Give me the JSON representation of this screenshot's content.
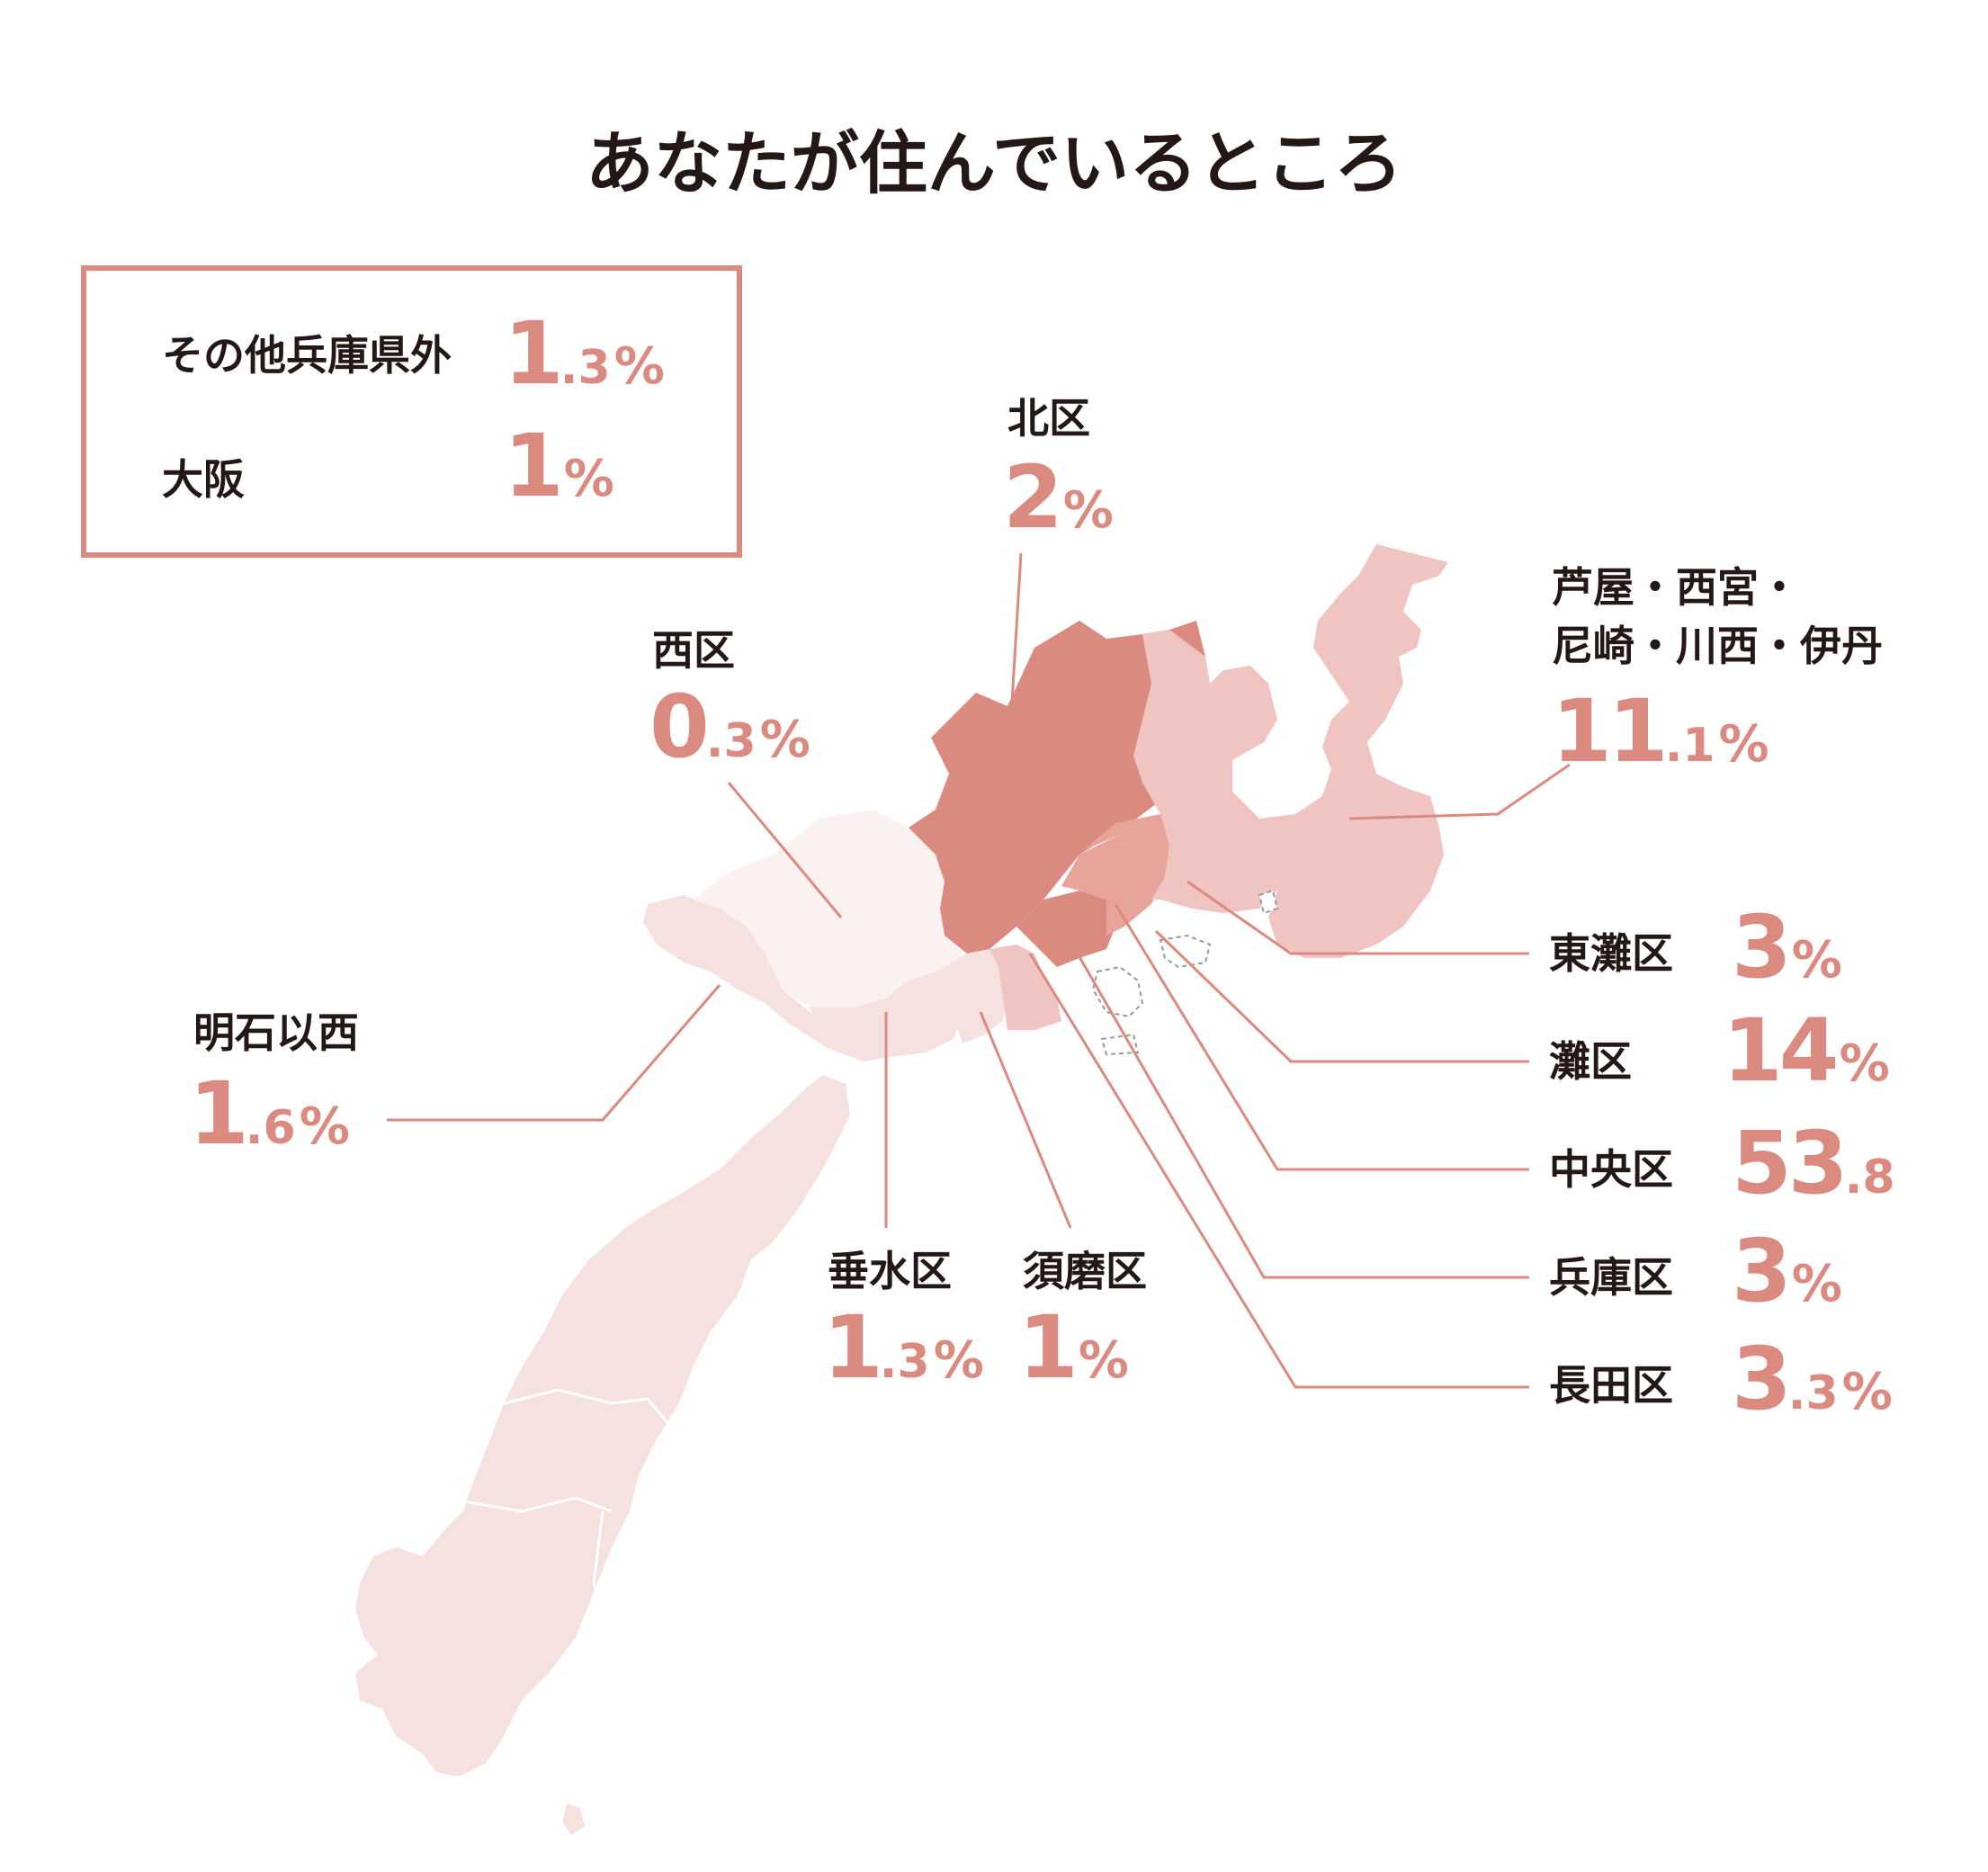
{
  "title": "あなたが住んでいるところ",
  "colors": {
    "accent": "#db8a80",
    "text": "#231815",
    "region_darkest": "#db8a80",
    "region_dark": "#e8a39b",
    "region_mid": "#f0c4c0",
    "region_light": "#f5e1df",
    "region_lightest": "#faf1f0"
  },
  "other_regions": [
    {
      "name": "その他兵庫県外",
      "int": "1",
      "dec": ".3",
      "unit": "%"
    },
    {
      "name": "大阪",
      "int": "1",
      "dec": "",
      "unit": "%"
    }
  ],
  "regions": {
    "kita": {
      "name": "北区",
      "int": "2",
      "dec": "",
      "unit": "%"
    },
    "nishi": {
      "name": "西区",
      "int": "0",
      "dec": ".3",
      "unit": "%"
    },
    "ashiya": {
      "name_line1": "芦屋・西宮・",
      "name_line2": "尼崎・川西・伊丹",
      "int": "11",
      "dec": ".1",
      "unit": "%"
    },
    "akashi": {
      "name": "明石以西",
      "int": "1",
      "dec": ".6",
      "unit": "%"
    },
    "higashinada": {
      "name": "東灘区",
      "int": "3",
      "dec": "",
      "unit": "%"
    },
    "nada": {
      "name": "灘区",
      "int": "14",
      "dec": "",
      "unit": "%"
    },
    "chuo": {
      "name": "中央区",
      "int": "53",
      "dec": ".8",
      "unit": ""
    },
    "hyogo": {
      "name": "兵庫区",
      "int": "3",
      "dec": "",
      "unit": "%"
    },
    "nagata": {
      "name": "長田区",
      "int": "3",
      "dec": ".3",
      "unit": "%"
    },
    "tarumi": {
      "name": "垂水区",
      "int": "1",
      "dec": ".3",
      "unit": "%"
    },
    "suma": {
      "name": "須磨区",
      "int": "1",
      "dec": "",
      "unit": "%"
    }
  }
}
